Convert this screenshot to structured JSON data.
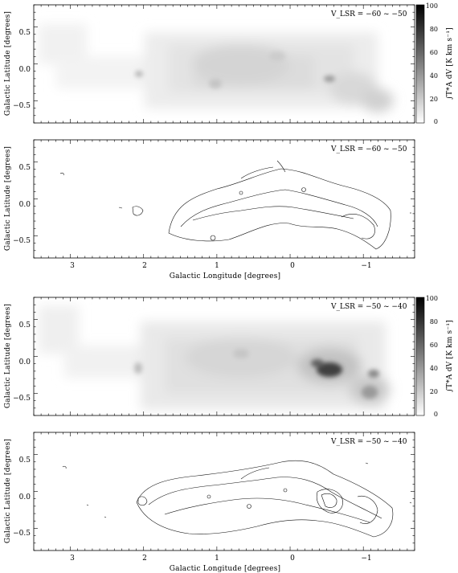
{
  "figure": {
    "y_axis_label": "Galactic Latitude [degrees]",
    "x_axis_label": "Galactic Longitude [degrees]",
    "colorbar_label": "∫T*A dV [K km s⁻¹]",
    "x_tick_labels": [
      "3",
      "2",
      "1",
      "0",
      "−1"
    ],
    "y_tick_labels": [
      "0.5",
      "0.0",
      "−0.5"
    ],
    "colorbar_ticks": [
      "100",
      "80",
      "60",
      "40",
      "20",
      "0"
    ],
    "colorbar_range": [
      0,
      100
    ],
    "x_range": [
      3.6,
      -1.7
    ],
    "y_range": [
      -0.75,
      0.85
    ],
    "colormap": "grayscale (white = 0, black = 100)",
    "contour_color": "#111111"
  },
  "panels": [
    {
      "id": "p1",
      "type": "image",
      "vlsr_label": "V_LSR = −60 ~ −50"
    },
    {
      "id": "p2",
      "type": "contour",
      "vlsr_label": "V_LSR = −60 ~ −50"
    },
    {
      "id": "p3",
      "type": "image",
      "vlsr_label": "V_LSR = −50 ~ −40"
    },
    {
      "id": "p4",
      "type": "contour",
      "vlsr_label": "V_LSR = −50 ~ −40"
    }
  ]
}
